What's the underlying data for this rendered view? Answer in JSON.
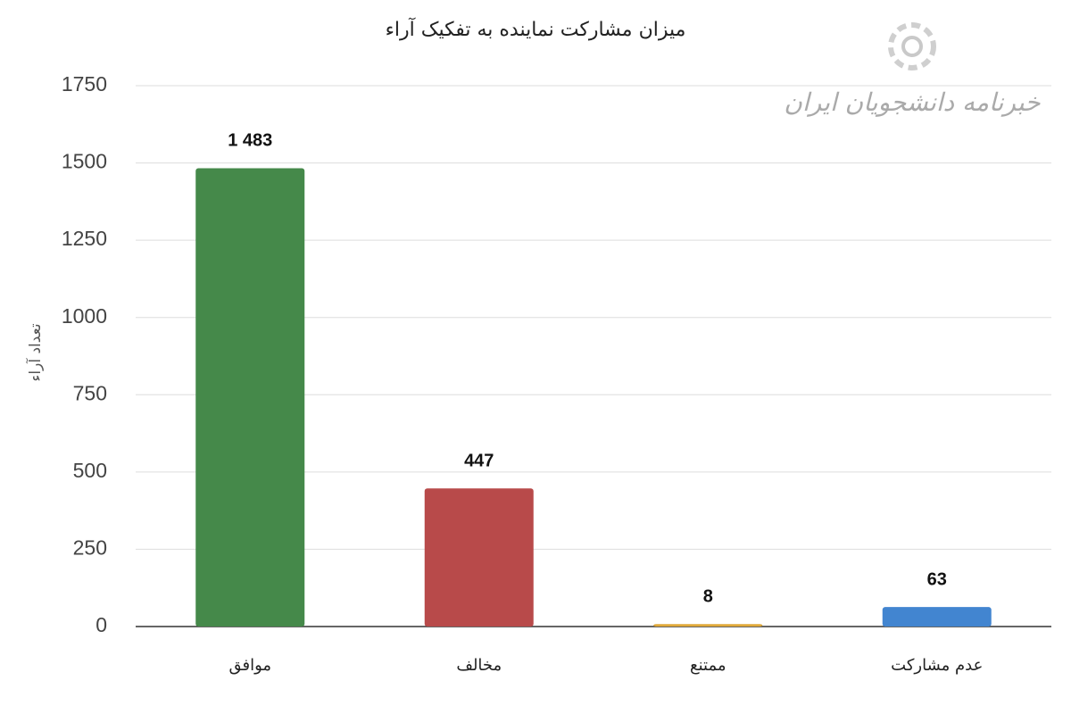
{
  "chart_data": {
    "type": "bar",
    "title": "میزان مشارکت نماینده به تفکیک آراء",
    "y_label": "تعداد آراء",
    "watermark": "خبرنامه دانشجویان ایران",
    "categories": [
      "موافق",
      "مخالف",
      "ممتنع",
      "عدم مشارکت"
    ],
    "values": [
      1483,
      447,
      8,
      63
    ],
    "value_labels": [
      "1 483",
      "447",
      "8",
      "63"
    ],
    "colors": [
      "#45894a",
      "#b84a4a",
      "#e0a93a",
      "#4285d0"
    ],
    "ylim": [
      0,
      1750
    ],
    "yticks": [
      0,
      250,
      500,
      750,
      1000,
      1250,
      1500,
      1750
    ],
    "grid": true
  }
}
